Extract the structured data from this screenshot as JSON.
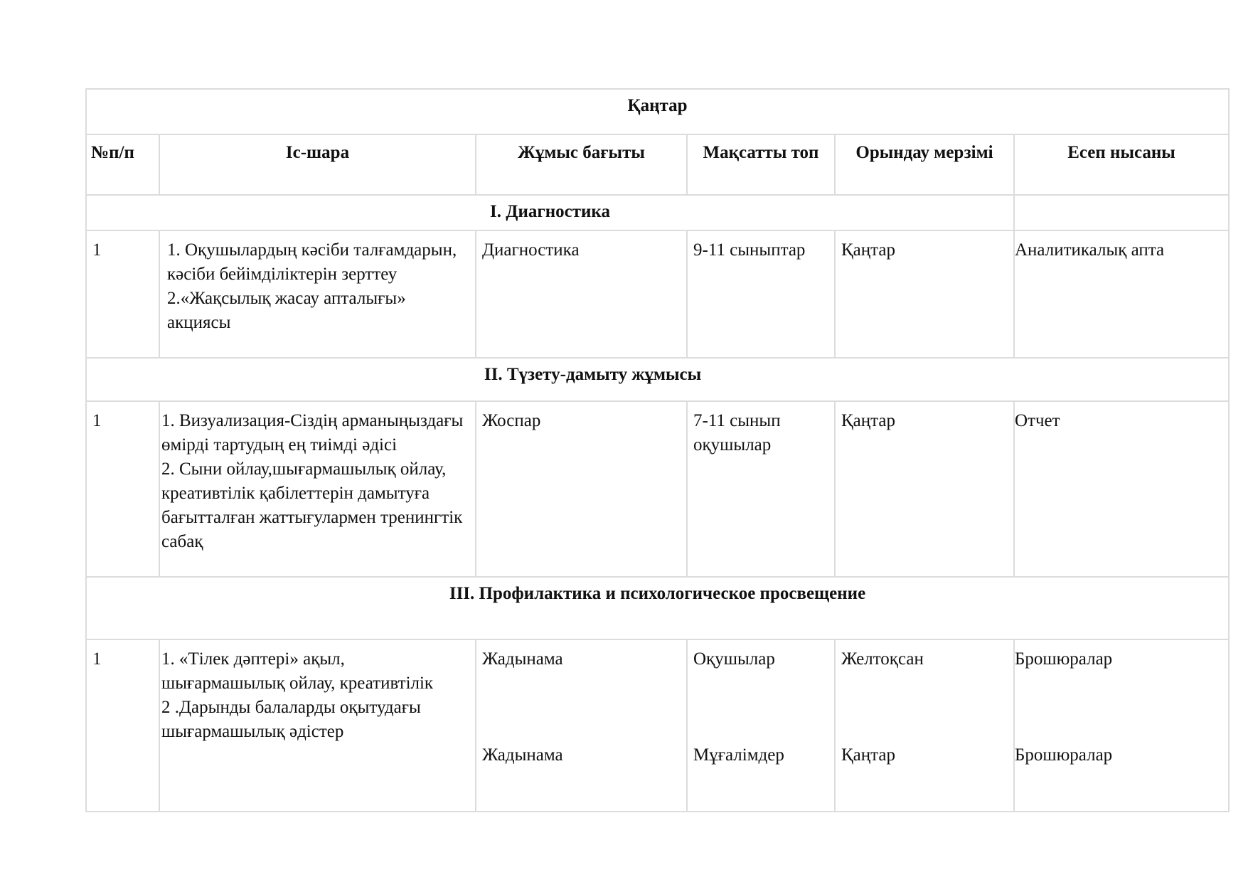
{
  "title": "Қаңтар",
  "headers": [
    "№п/п",
    "Іс-шара",
    "Жұмыс бағыты",
    "Мақсатты топ",
    "Орындау мерзімі",
    "Есеп нысаны"
  ],
  "sections": [
    {
      "heading": "I. Диагностика",
      "row": {
        "num": "1",
        "activity": [
          "1. Оқушылардың кәсіби талғамдарын, кәсіби бейімділіктерін зерттеу",
          "2.«Жақсылық жасау апталығы» акциясы"
        ],
        "direction": "Диагностика",
        "target": "9-11 сыныптар",
        "deadline": "Қаңтар",
        "report": "Аналитикалық апта"
      }
    },
    {
      "heading": "II. Түзету-дамыту жұмысы",
      "row": {
        "num": "1",
        "activity": [
          "1. Визуализация-Сіздің арманыңыздағы өмірді тартудың ең тиімді әдісі",
          "2. Сыни ойлау,шығармашылық ойлау, креативтілік қабілеттерін дамытуға бағытталған жаттығулармен тренингтік сабақ"
        ],
        "direction": "Жоспар",
        "target": "7-11 сынып оқушылар",
        "deadline": "Қаңтар",
        "report": "Отчет"
      }
    },
    {
      "heading": "III. Профилактика и психологическое просвещение",
      "row": {
        "num": "1",
        "activity": [
          "1. «Тілек дәптері» ақыл, шығармашылық ойлау, креативтілік",
          "2 .Дарынды балаларды оқытудағы шығармашылық әдістер"
        ],
        "direction": [
          "Жадынама",
          "Жадынама"
        ],
        "target": [
          "Оқушылар",
          "Мұғалімдер"
        ],
        "deadline": [
          "Желтоқсан",
          "Қаңтар"
        ],
        "report": [
          "Брошюралар",
          "Брошюралар"
        ]
      }
    }
  ]
}
